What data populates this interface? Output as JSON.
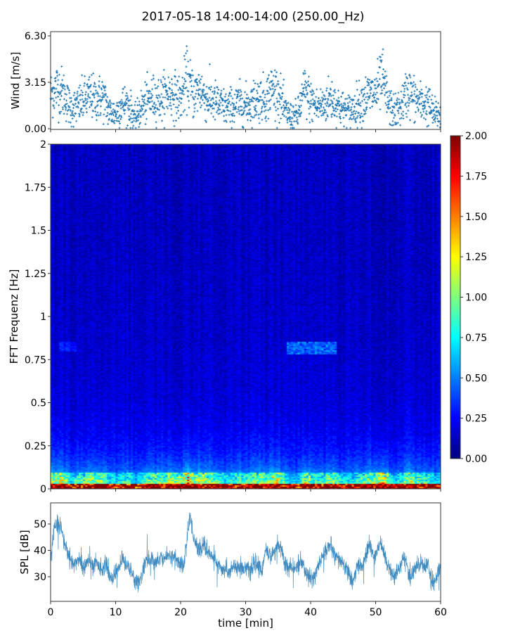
{
  "title": "2017-05-18 14:00-14:00 (250.00_Hz)",
  "chart_data": [
    {
      "type": "scatter",
      "name": "wind",
      "ylabel": "Wind [m/s]",
      "ylim": [
        0,
        6.3
      ],
      "yticks": [
        "0.00",
        "3.15",
        "6.30"
      ],
      "xlim": [
        0,
        60
      ],
      "color": "#1f77b4",
      "marker": "+",
      "x": [
        0,
        1,
        2,
        3,
        4,
        5,
        6,
        7,
        8,
        9,
        10,
        11,
        12,
        13,
        14,
        15,
        16,
        17,
        18,
        19,
        20,
        21,
        22,
        23,
        24,
        25,
        26,
        27,
        28,
        29,
        30,
        31,
        32,
        33,
        34,
        35,
        36,
        37,
        38,
        39,
        40,
        41,
        42,
        43,
        44,
        45,
        46,
        47,
        48,
        49,
        50,
        51,
        52,
        53,
        54,
        55,
        56,
        57,
        58,
        59,
        60
      ],
      "y_mean": [
        2.3,
        2.8,
        2.4,
        1.4,
        1.5,
        1.9,
        2.2,
        2.0,
        2.2,
        1.2,
        1.0,
        1.7,
        1.6,
        0.6,
        1.5,
        1.9,
        2.1,
        2.0,
        2.4,
        2.3,
        2.0,
        3.5,
        2.3,
        2.7,
        2.0,
        1.9,
        1.6,
        1.4,
        1.5,
        1.7,
        1.6,
        1.8,
        2.1,
        2.0,
        2.7,
        2.5,
        1.2,
        0.8,
        0.9,
        2.6,
        1.9,
        1.5,
        1.6,
        2.1,
        1.7,
        1.3,
        1.2,
        1.6,
        1.9,
        2.3,
        2.4,
        3.4,
        1.6,
        1.1,
        1.6,
        2.6,
        2.0,
        1.7,
        1.7,
        1.0,
        0.9
      ]
    },
    {
      "type": "heatmap",
      "name": "spectrogram",
      "ylabel": "FFT Frequenz [Hz]",
      "ylim": [
        0,
        2
      ],
      "yticks": [
        "0",
        "0.25",
        "0.5",
        "0.75",
        "1",
        "1.25",
        "1.5",
        "1.75",
        "2"
      ],
      "xlim": [
        0,
        60
      ],
      "colormap": "jet",
      "clim": [
        0,
        2
      ],
      "colorbar_ticks": [
        "0.00",
        "0.25",
        "0.50",
        "0.75",
        "1.00",
        "1.25",
        "1.50",
        "1.75",
        "2.00"
      ]
    },
    {
      "type": "line",
      "name": "spl",
      "ylabel": "SPL [dB]",
      "xlabel": "time [min]",
      "ylim": [
        20.7,
        58
      ],
      "yticks": [
        "30",
        "40",
        "50"
      ],
      "xlim": [
        0,
        60
      ],
      "xticks": [
        "0",
        "10",
        "20",
        "30",
        "40",
        "50",
        "60"
      ],
      "color": "#1f77b4",
      "x": [
        0,
        0.5,
        1,
        1.5,
        2,
        2.5,
        3,
        3.5,
        4,
        4.5,
        5,
        5.5,
        6,
        6.5,
        7,
        7.5,
        8,
        8.5,
        9,
        9.5,
        10,
        10.5,
        11,
        11.5,
        12,
        12.5,
        13,
        13.5,
        14,
        14.5,
        15,
        15.5,
        16,
        16.5,
        17,
        17.5,
        18,
        18.5,
        19,
        19.5,
        20,
        20.5,
        21,
        21.5,
        22,
        22.5,
        23,
        23.5,
        24,
        24.5,
        25,
        25.5,
        26,
        26.5,
        27,
        27.5,
        28,
        28.5,
        29,
        29.5,
        30,
        30.5,
        31,
        31.5,
        32,
        32.5,
        33,
        33.5,
        34,
        34.5,
        35,
        35.5,
        36,
        36.5,
        37,
        37.5,
        38,
        38.5,
        39,
        39.5,
        40,
        40.5,
        41,
        41.5,
        42,
        42.5,
        43,
        43.5,
        44,
        44.5,
        45,
        45.5,
        46,
        46.5,
        47,
        47.5,
        48,
        48.5,
        49,
        49.5,
        50,
        50.5,
        51,
        51.5,
        52,
        52.5,
        53,
        53.5,
        54,
        54.5,
        55,
        55.5,
        56,
        56.5,
        57,
        57.5,
        58,
        58.5,
        59,
        59.5,
        60
      ],
      "y": [
        35,
        48,
        50,
        50,
        44,
        40,
        37,
        34,
        36,
        37,
        33,
        35,
        36,
        34,
        35,
        34,
        33,
        35,
        31,
        29,
        32,
        33,
        37,
        35,
        33,
        32,
        28,
        28,
        30,
        35,
        36,
        37,
        36,
        35,
        38,
        37,
        38,
        37,
        38,
        36,
        35,
        34,
        45,
        53,
        45,
        41,
        40,
        42,
        40,
        39,
        37,
        36,
        33,
        32,
        33,
        32,
        34,
        33,
        34,
        33,
        34,
        32,
        33,
        35,
        34,
        32,
        40,
        39,
        38,
        40,
        42,
        41,
        35,
        33,
        34,
        32,
        34,
        36,
        33,
        31,
        29,
        30,
        33,
        36,
        38,
        41,
        42,
        39,
        37,
        36,
        35,
        33,
        30,
        28,
        32,
        35,
        34,
        38,
        42,
        39,
        38,
        42,
        42,
        37,
        34,
        31,
        30,
        33,
        36,
        37,
        31,
        30,
        33,
        35,
        35,
        34,
        35,
        30,
        27,
        31,
        34
      ]
    }
  ]
}
